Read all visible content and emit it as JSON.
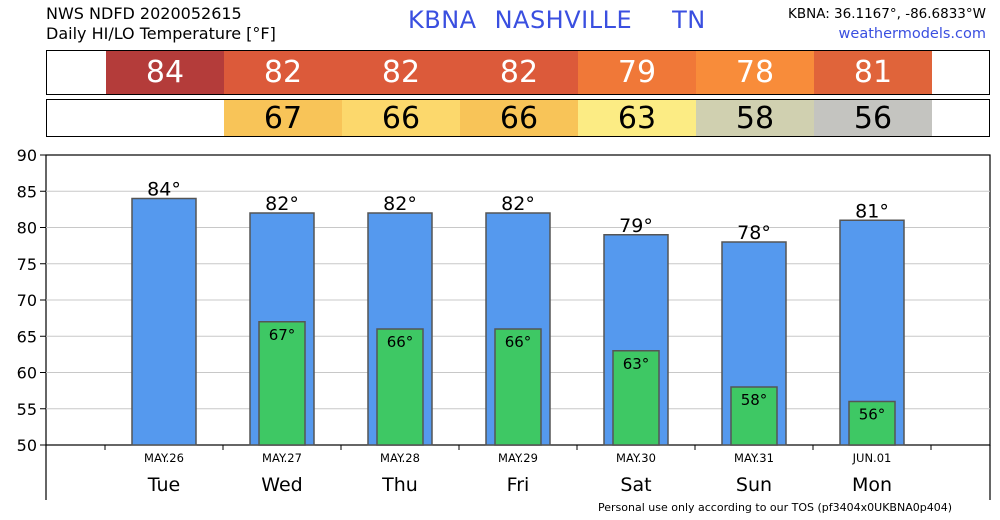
{
  "header": {
    "line1": "NWS NDFD 2020052615",
    "line2": "Daily HI/LO Temperature [°F]",
    "station": "KBNA",
    "city": "NASHVILLE",
    "state": "TN",
    "coords": "KBNA: 36.1167°, -86.6833°W",
    "site": "weathermodels.com"
  },
  "hi_strip": [
    {
      "value": "84",
      "color": "#b43c3a"
    },
    {
      "value": "82",
      "color": "#dc5a3a"
    },
    {
      "value": "82",
      "color": "#dc5a3a"
    },
    {
      "value": "82",
      "color": "#dc5a3a"
    },
    {
      "value": "79",
      "color": "#f07838"
    },
    {
      "value": "78",
      "color": "#f88c3a"
    },
    {
      "value": "81",
      "color": "#e0643a"
    }
  ],
  "lo_strip": [
    {
      "value": "",
      "color": "#ffffff"
    },
    {
      "value": "67",
      "color": "#f8c458"
    },
    {
      "value": "66",
      "color": "#fcd86c"
    },
    {
      "value": "66",
      "color": "#f8c458"
    },
    {
      "value": "63",
      "color": "#fcec84"
    },
    {
      "value": "58",
      "color": "#d0d0b0"
    },
    {
      "value": "56",
      "color": "#c4c4c0"
    }
  ],
  "chart_data": {
    "type": "bar",
    "categories": [
      "Tue",
      "Wed",
      "Thu",
      "Fri",
      "Sat",
      "Sun",
      "Mon"
    ],
    "dates": [
      "MAY.26",
      "MAY.27",
      "MAY.28",
      "MAY.29",
      "MAY.30",
      "MAY.31",
      "JUN.01"
    ],
    "series": [
      {
        "values": [
          84,
          82,
          82,
          82,
          79,
          78,
          81
        ],
        "color": "#5599ee",
        "labels": [
          "84°",
          "82°",
          "82°",
          "82°",
          "79°",
          "78°",
          "81°"
        ]
      },
      {
        "values": [
          null,
          67,
          66,
          66,
          63,
          58,
          56
        ],
        "color": "#3ec864",
        "labels": [
          "",
          "67°",
          "66°",
          "66°",
          "63°",
          "58°",
          "56°"
        ]
      }
    ],
    "ylim": [
      50,
      90
    ],
    "yticks": [
      50,
      55,
      60,
      65,
      70,
      75,
      80,
      85,
      90
    ],
    "grid": true
  },
  "footer": "Personal use only according to our TOS (pf3404x0UKBNA0p404)"
}
